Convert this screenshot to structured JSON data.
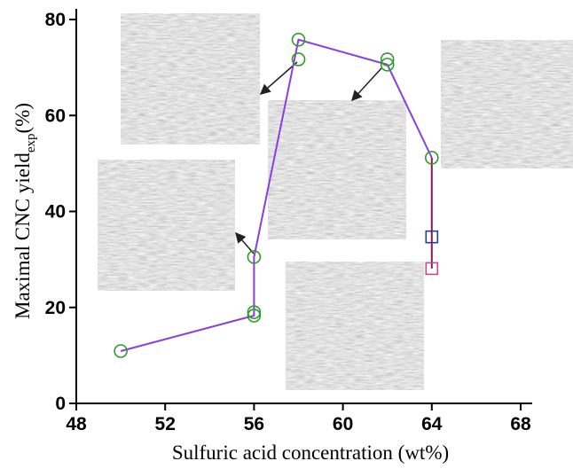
{
  "chart_data": {
    "type": "line",
    "xlabel": "Sulfuric acid concentration (wt%)",
    "ylabel": {
      "text": "Maximal CNC yield",
      "subscript": "exp",
      "suffix": "(%)"
    },
    "xlim": [
      48,
      68
    ],
    "xticks": [
      48,
      52,
      56,
      60,
      64,
      68
    ],
    "ylim": [
      0,
      80
    ],
    "yticks": [
      0,
      20,
      40,
      60,
      80
    ],
    "series": [
      {
        "kind": "line",
        "color": "#8a3ee0",
        "x": [
          50,
          56,
          56,
          58,
          62,
          64
        ],
        "values": [
          10.9,
          18.3,
          30.5,
          75.8,
          70.6,
          51.2
        ]
      },
      {
        "kind": "line",
        "color": "#8b1a4a",
        "x": [
          64,
          64
        ],
        "values": [
          51.2,
          28.1
        ]
      },
      {
        "kind": "circle",
        "color": "#2e9a2e",
        "x": [
          50,
          56,
          56,
          56,
          58,
          58,
          62,
          62,
          64
        ],
        "values": [
          10.9,
          18.3,
          19,
          30.5,
          71.7,
          75.8,
          71.7,
          70.6,
          51.2
        ]
      },
      {
        "kind": "square",
        "color": "#2040a0",
        "x": [
          64
        ],
        "values": [
          34.7
        ]
      },
      {
        "kind": "square",
        "color": "#c04a9a",
        "x": [
          64
        ],
        "values": [
          28.1
        ]
      }
    ]
  }
}
